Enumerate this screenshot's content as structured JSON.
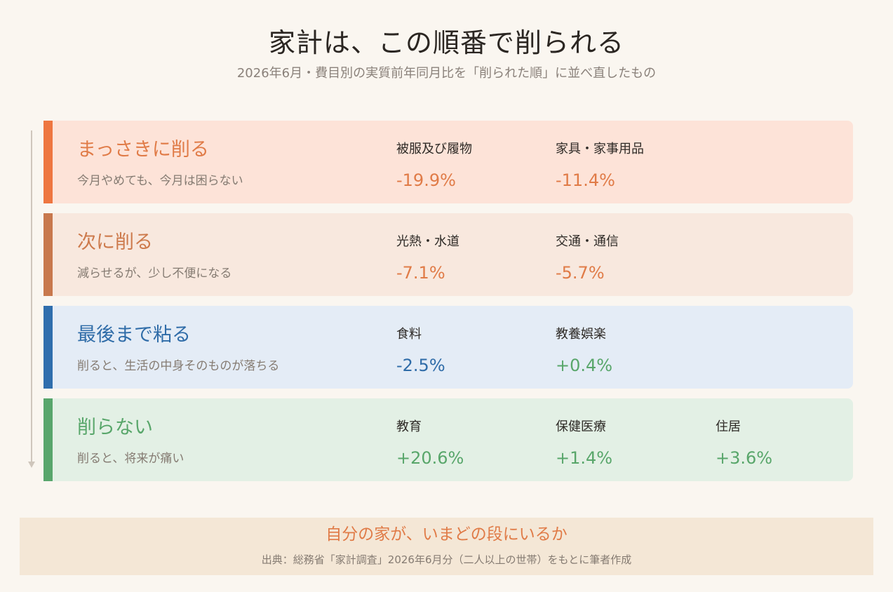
{
  "header": {
    "title": "家計は、この順番で削られる",
    "subtitle": "2026年6月・費目別の実質前年同月比を「削られた順」に並べ直したもの"
  },
  "tiers": [
    {
      "name": "まっさきに削る",
      "description": "今月やめても、今月は困らない",
      "color": "#ee7640",
      "items": [
        {
          "label": "被服及び履物",
          "value": "-19.9%",
          "number": -19.9
        },
        {
          "label": "家具・家事用品",
          "value": "-11.4%",
          "number": -11.4
        }
      ]
    },
    {
      "name": "次に削る",
      "description": "減らせるが、少し不便になる",
      "color": "#c8784d",
      "items": [
        {
          "label": "光熱・水道",
          "value": "-7.1%",
          "number": -7.1
        },
        {
          "label": "交通・通信",
          "value": "-5.7%",
          "number": -5.7
        }
      ]
    },
    {
      "name": "最後まで粘る",
      "description": "削ると、生活の中身そのものが落ちる",
      "color": "#2f6ead",
      "items": [
        {
          "label": "食料",
          "value": "-2.5%",
          "number": -2.5
        },
        {
          "label": "教養娯楽",
          "value": "+0.4%",
          "number": 0.4
        }
      ]
    },
    {
      "name": "削らない",
      "description": "削ると、将来が痛い",
      "color": "#58a66c",
      "items": [
        {
          "label": "教育",
          "value": "+20.6%",
          "number": 20.6
        },
        {
          "label": "保健医療",
          "value": "+1.4%",
          "number": 1.4
        },
        {
          "label": "住居",
          "value": "+3.6%",
          "number": 3.6
        }
      ]
    }
  ],
  "footer": {
    "question": "自分の家が、いまどの段にいるか",
    "source": "出典：総務省「家計調査」2026年6月分（二人以上の世帯）をもとに筆者作成"
  }
}
